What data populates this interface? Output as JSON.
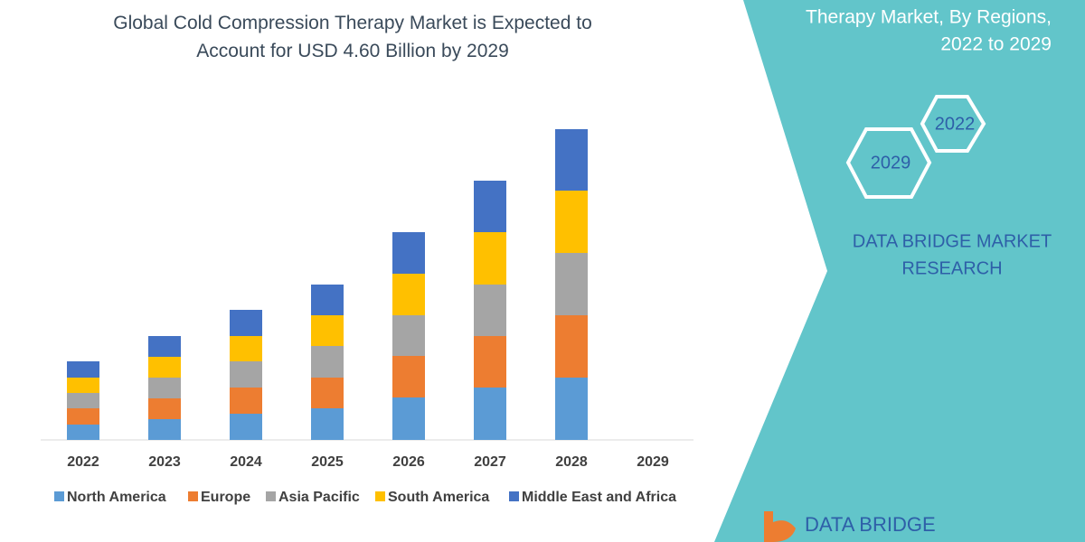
{
  "chart_data": {
    "type": "stacked-bar",
    "title": "Global Cold Compression Therapy Market is Expected to Account for USD 4.60 Billion by 2029",
    "categories": [
      "2022",
      "2023",
      "2024",
      "2025",
      "2026",
      "2027",
      "2028",
      "2029"
    ],
    "series": [
      {
        "name": "North America",
        "color": "#5b9bd5",
        "values": [
          17,
          23,
          29,
          35,
          47,
          58,
          69,
          null
        ]
      },
      {
        "name": "Europe",
        "color": "#ed7d31",
        "values": [
          18,
          23,
          29,
          34,
          46,
          57,
          69,
          null
        ]
      },
      {
        "name": "Asia Pacific",
        "color": "#a5a5a5",
        "values": [
          17,
          23,
          29,
          35,
          45,
          57,
          69,
          null
        ]
      },
      {
        "name": "South America",
        "color": "#ffc000",
        "values": [
          17,
          23,
          28,
          34,
          46,
          58,
          69,
          null
        ]
      },
      {
        "name": "Middle East and Africa",
        "color": "#4472c4",
        "values": [
          18,
          23,
          29,
          34,
          46,
          57,
          68,
          null
        ]
      }
    ],
    "ylim": [
      0,
      350
    ],
    "legend": "bottom"
  },
  "sidebar": {
    "heading_lines": [
      "Therapy Market, By Regions,",
      "2022 to 2029"
    ],
    "hexagons": [
      "2022",
      "2029"
    ],
    "brand_lines": [
      "DATA BRIDGE MARKET",
      "RESEARCH"
    ],
    "logo": "DATA BRIDGE"
  }
}
